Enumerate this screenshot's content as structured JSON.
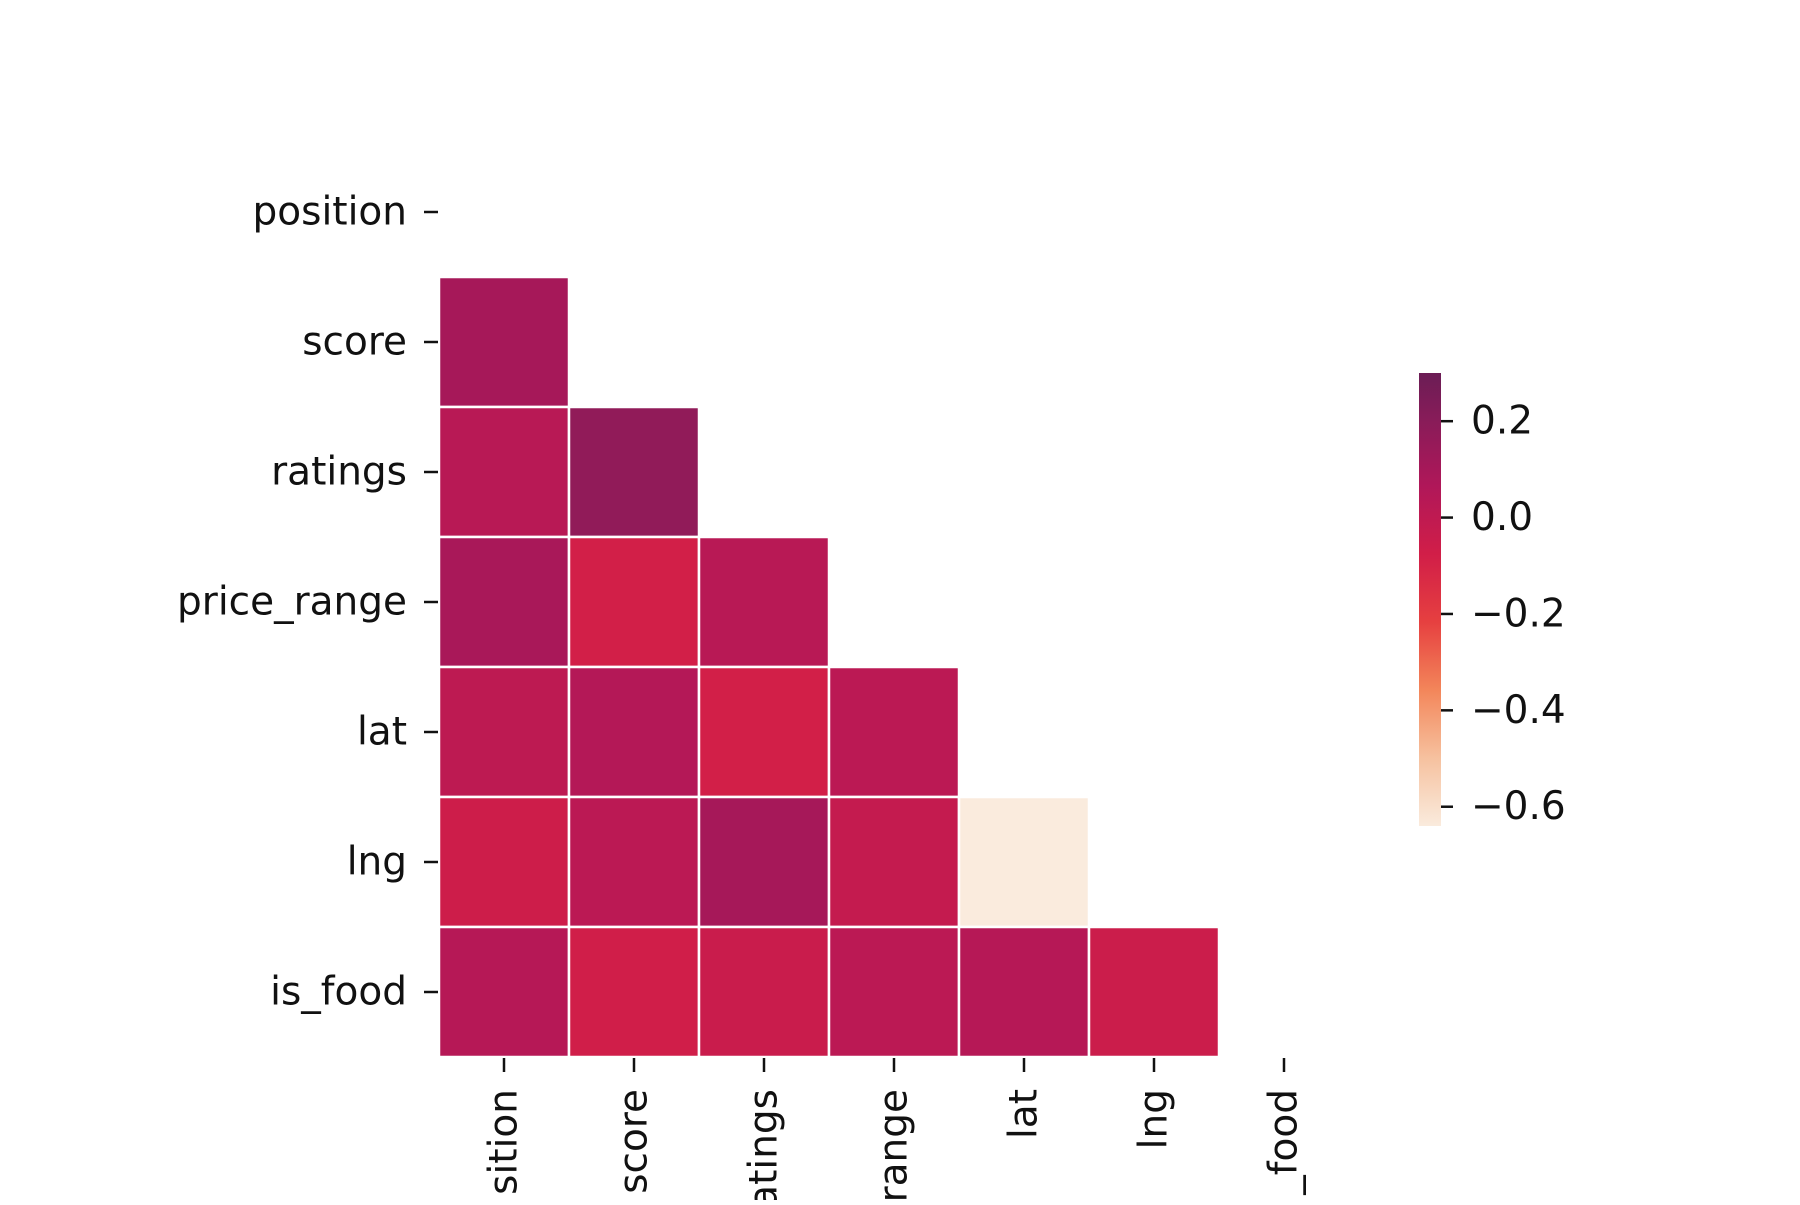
{
  "chart_data": {
    "type": "heatmap",
    "title": "",
    "xlabel": "",
    "ylabel": "",
    "rows": [
      "position",
      "score",
      "ratings",
      "price_range",
      "lat",
      "lng",
      "is_food"
    ],
    "columns": [
      "position",
      "score",
      "ratings",
      "price_range",
      "lat",
      "lng",
      "is_food"
    ],
    "x_tick_labels_visible": [
      "sition",
      "score",
      "atings",
      "range",
      "lat",
      "lng",
      "_food"
    ],
    "mask": "upper-triangle-including-diagonal",
    "values": [
      [
        null,
        null,
        null,
        null,
        null,
        null,
        null
      ],
      [
        0.1,
        null,
        null,
        null,
        null,
        null,
        null
      ],
      [
        0.03,
        0.17,
        null,
        null,
        null,
        null,
        null
      ],
      [
        0.09,
        -0.08,
        0.03,
        null,
        null,
        null,
        null
      ],
      [
        0.01,
        0.05,
        -0.08,
        0.02,
        null,
        null,
        null
      ],
      [
        -0.06,
        0.02,
        0.1,
        -0.02,
        -0.64,
        null,
        null
      ],
      [
        0.04,
        -0.07,
        -0.04,
        0.02,
        0.04,
        -0.05,
        null
      ]
    ],
    "colorbar": {
      "vmin": -0.64,
      "vmax": 0.3,
      "ticks": [
        0.2,
        0.0,
        -0.2,
        -0.4,
        -0.6
      ],
      "tick_labels": [
        "0.2",
        "0.0",
        "−0.2",
        "−0.4",
        "−0.6"
      ],
      "colormap": "rocket_r",
      "position": "right"
    },
    "grid": false
  }
}
